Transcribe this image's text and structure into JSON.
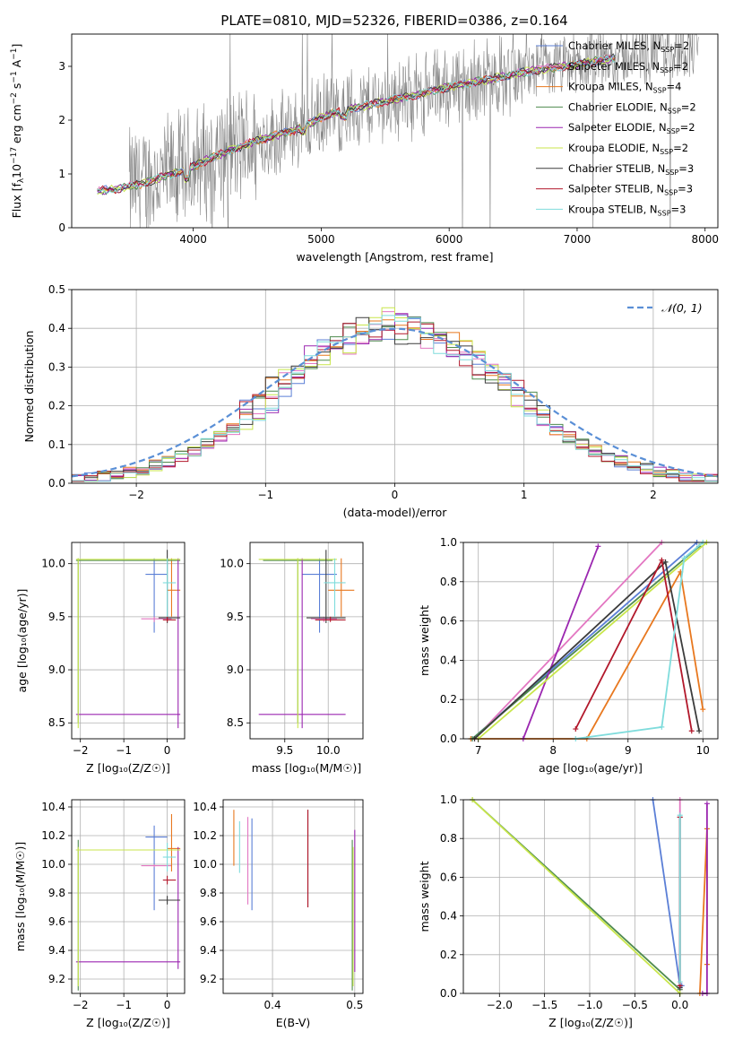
{
  "figure": {
    "title": "PLATE=0810, MJD=52326, FIBERID=0386, z=0.164"
  },
  "colors": {
    "Chabrier MILES": "#5b7fd6",
    "Salpeter MILES": "#e377c2",
    "Kroupa MILES": "#e8781f",
    "Chabrier ELODIE": "#4f8b4f",
    "Salpeter ELODIE": "#9b27b0",
    "Kroupa ELODIE": "#c8e64b",
    "Chabrier STELIB": "#3c3c3c",
    "Salpeter STELIB": "#b2182b",
    "Kroupa STELIB": "#7fdcdc",
    "data": "#808080",
    "gauss": "#5a8fd6"
  },
  "chart_data": [
    {
      "id": "spectrum",
      "type": "line",
      "title": "PLATE=0810, MJD=52326, FIBERID=0386, z=0.164",
      "xlabel": "wavelength [Angstrom, rest frame]",
      "ylabel": "Flux [f",
      "ylabel_sub": "λ",
      "ylabel_rest": "10",
      "ylabel_exp": "−17",
      "ylabel_tail": " erg cm",
      "ylabel_exp2": "−2",
      "ylabel_tail2": " s",
      "ylabel_exp3": "−1",
      "ylabel_tail3": " A",
      "ylabel_exp4": "−1",
      "ylabel_end": "]",
      "xlim": [
        3050,
        8100
      ],
      "ylim": [
        0,
        3.6
      ],
      "xticks": [
        4000,
        5000,
        6000,
        7000,
        8000
      ],
      "yticks": [
        0,
        1,
        2,
        3
      ],
      "legend_position": "top-right",
      "legend": [
        {
          "name": "Chabrier MILES",
          "nssp": "2"
        },
        {
          "name": "Salpeter MILES",
          "nssp": "2"
        },
        {
          "name": "Kroupa MILES",
          "nssp": "4"
        },
        {
          "name": "Chabrier ELODIE",
          "nssp": "2"
        },
        {
          "name": "Salpeter ELODIE",
          "nssp": "2"
        },
        {
          "name": "Kroupa ELODIE",
          "nssp": "2"
        },
        {
          "name": "Chabrier STELIB",
          "nssp": "3"
        },
        {
          "name": "Salpeter STELIB",
          "nssp": "3"
        },
        {
          "name": "Kroupa STELIB",
          "nssp": "3"
        }
      ],
      "legend_prefix": "N",
      "legend_sub": "SSP",
      "model_continuum": {
        "x": [
          3250,
          3400,
          3600,
          3800,
          3950,
          4100,
          4300,
          4500,
          4800,
          5000,
          5200,
          5500,
          5800,
          6000,
          6300,
          6600,
          6900,
          7200,
          7500,
          7800,
          8000
        ],
        "y": [
          0.68,
          0.72,
          0.82,
          0.98,
          1.08,
          1.25,
          1.45,
          1.62,
          1.82,
          2.05,
          2.2,
          2.35,
          2.5,
          2.62,
          2.75,
          2.9,
          3.0,
          3.12,
          3.22,
          3.32,
          3.4
        ]
      }
    },
    {
      "id": "residuals",
      "type": "line",
      "xlabel": "(data-model)/error",
      "ylabel": "Normed distribution",
      "xlim": [
        -2.5,
        2.5
      ],
      "ylim": [
        0,
        0.5
      ],
      "xticks": [
        -2,
        -1,
        0,
        1,
        2
      ],
      "yticks": [
        0.0,
        0.1,
        0.2,
        0.3,
        0.4,
        0.5
      ],
      "grid": true,
      "legend_position": "top-right",
      "gauss_label": "𝒩(0, 1)",
      "hist_bin_width": 0.1,
      "hist_x_start": -2.5
    },
    {
      "id": "age_vs_Z",
      "type": "scatter",
      "xlabel": "Z [log₁₀(Z/Z☉)]",
      "ylabel": "age  [log₁₀(age/yr)]",
      "xlim": [
        -2.2,
        0.4
      ],
      "ylim": [
        8.35,
        10.2
      ],
      "xticks": [
        -2,
        -1,
        0
      ],
      "yticks": [
        8.5,
        9.0,
        9.5,
        10.0
      ],
      "grid": true
    },
    {
      "id": "age_vs_mass",
      "type": "scatter",
      "xlabel": "mass [log₁₀(M/M☉)]",
      "xlim": [
        9.1,
        10.4
      ],
      "ylim": [
        8.35,
        10.2
      ],
      "xticks": [
        9.5,
        10.0
      ],
      "yticks": [
        8.5,
        9.0,
        9.5,
        10.0
      ],
      "grid": true
    },
    {
      "id": "weight_vs_age",
      "type": "line",
      "xlabel": "age  [log₁₀(age/yr)]",
      "ylabel": "mass weight",
      "xlim": [
        6.8,
        10.2
      ],
      "ylim": [
        0,
        1
      ],
      "xticks": [
        7,
        8,
        9,
        10
      ],
      "yticks": [
        0.0,
        0.2,
        0.4,
        0.6,
        0.8,
        1.0
      ],
      "grid": true,
      "series": [
        {
          "name": "Chabrier MILES",
          "x": [
            6.92,
            9.92
          ],
          "y": [
            0.0,
            1.0
          ]
        },
        {
          "name": "Salpeter MILES",
          "x": [
            6.95,
            9.45
          ],
          "y": [
            0.0,
            1.0
          ]
        },
        {
          "name": "Kroupa MILES",
          "x": [
            6.9,
            8.45,
            9.7,
            10.0
          ],
          "y": [
            0.0,
            0.0,
            0.85,
            0.15
          ]
        },
        {
          "name": "Chabrier ELODIE",
          "x": [
            6.92,
            9.95
          ],
          "y": [
            0.0,
            0.98
          ]
        },
        {
          "name": "Salpeter ELODIE",
          "x": [
            7.6,
            8.6
          ],
          "y": [
            0.0,
            0.98
          ]
        },
        {
          "name": "Kroupa ELODIE",
          "x": [
            7.0,
            10.05
          ],
          "y": [
            0.0,
            1.0
          ]
        },
        {
          "name": "Chabrier STELIB",
          "x": [
            6.95,
            9.5,
            9.95
          ],
          "y": [
            0.0,
            0.9,
            0.04
          ]
        },
        {
          "name": "Salpeter STELIB",
          "x": [
            8.3,
            9.45,
            9.85
          ],
          "y": [
            0.05,
            0.91,
            0.04
          ]
        },
        {
          "name": "Kroupa STELIB",
          "x": [
            8.3,
            9.45,
            9.75,
            10.0
          ],
          "y": [
            0.0,
            0.06,
            0.92,
            1.0
          ]
        }
      ]
    },
    {
      "id": "mass_vs_Z",
      "type": "scatter",
      "xlabel": "Z [log₁₀(Z/Z☉)]",
      "ylabel": "mass [log₁₀(M/M☉)]",
      "xlim": [
        -2.2,
        0.4
      ],
      "ylim": [
        9.1,
        10.45
      ],
      "xticks": [
        -2,
        -1,
        0
      ],
      "yticks": [
        9.2,
        9.4,
        9.6,
        9.8,
        10.0,
        10.2,
        10.4
      ],
      "grid": true
    },
    {
      "id": "mass_vs_EBV",
      "type": "scatter",
      "xlabel": "E(B-V)",
      "xlim": [
        0.34,
        0.51
      ],
      "ylim": [
        9.1,
        10.45
      ],
      "xticks": [
        0.4,
        0.5
      ],
      "yticks": [
        9.2,
        9.4,
        9.6,
        9.8,
        10.0,
        10.2,
        10.4
      ],
      "grid": true,
      "series": [
        {
          "name": "Chabrier MILES",
          "x": 0.375,
          "ylo": 9.68,
          "yhi": 10.32
        },
        {
          "name": "Salpeter MILES",
          "x": 0.37,
          "ylo": 9.72,
          "yhi": 10.33
        },
        {
          "name": "Kroupa MILES",
          "x": 0.353,
          "ylo": 9.99,
          "yhi": 10.38
        },
        {
          "name": "Chabrier ELODIE",
          "x": 0.497,
          "ylo": 9.12,
          "yhi": 10.17
        },
        {
          "name": "Salpeter ELODIE",
          "x": 0.5,
          "ylo": 9.25,
          "yhi": 10.24
        },
        {
          "name": "Kroupa ELODIE",
          "x": 0.498,
          "ylo": 9.15,
          "yhi": 10.12
        },
        {
          "name": "Chabrier STELIB",
          "x": 0.443,
          "ylo": 9.7,
          "yhi": 10.38
        },
        {
          "name": "Salpeter STELIB",
          "x": 0.443,
          "ylo": 9.7,
          "yhi": 10.38
        },
        {
          "name": "Kroupa STELIB",
          "x": 0.36,
          "ylo": 9.94,
          "yhi": 10.3
        }
      ]
    },
    {
      "id": "weight_vs_Z",
      "type": "line",
      "xlabel": "Z [log₁₀(Z/Z☉)]",
      "ylabel": "mass weight",
      "xlim": [
        -2.4,
        0.42
      ],
      "ylim": [
        0,
        1
      ],
      "xticks": [
        -2.0,
        -1.5,
        -1.0,
        -0.5,
        0.0
      ],
      "yticks": [
        0.0,
        0.2,
        0.4,
        0.6,
        0.8,
        1.0
      ],
      "grid": true,
      "series": [
        {
          "name": "Chabrier MILES",
          "x": [
            -0.3,
            0.0,
            0.02
          ],
          "y": [
            1.0,
            0.04,
            0.04
          ]
        },
        {
          "name": "Salpeter MILES",
          "x": [
            0.0,
            0.0
          ],
          "y": [
            0.02,
            1.0
          ]
        },
        {
          "name": "Kroupa MILES",
          "x": [
            0.3,
            0.3,
            0.22
          ],
          "y": [
            0.15,
            0.85,
            0.0
          ]
        },
        {
          "name": "Chabrier ELODIE",
          "x": [
            -2.3,
            0.0
          ],
          "y": [
            1.0,
            0.02
          ]
        },
        {
          "name": "Salpeter ELODIE",
          "x": [
            0.3,
            0.3,
            0.25
          ],
          "y": [
            0.98,
            0.0,
            0.0
          ]
        },
        {
          "name": "Kroupa ELODIE",
          "x": [
            -2.3,
            0.0
          ],
          "y": [
            1.0,
            0.0
          ]
        },
        {
          "name": "Chabrier STELIB",
          "x": [
            0.0,
            0.0
          ],
          "y": [
            0.03,
            0.91
          ]
        },
        {
          "name": "Salpeter STELIB",
          "x": [
            0.0,
            0.0
          ],
          "y": [
            0.04,
            0.91
          ]
        },
        {
          "name": "Kroupa STELIB",
          "x": [
            0.0,
            0.0
          ],
          "y": [
            0.06,
            0.92
          ]
        }
      ]
    }
  ],
  "sfh_points": [
    {
      "name": "Chabrier MILES",
      "Z": -0.3,
      "Zlo": -0.5,
      "Zhi": 0.0,
      "age": 9.9,
      "agelo": 9.35,
      "agehi": 10.05,
      "mass": 10.19,
      "masslo": 9.68,
      "masshi": 10.27,
      "m_lo": 9.7,
      "m_hi": 10.1
    },
    {
      "name": "Salpeter MILES",
      "Z": -0.3,
      "Zlo": -0.6,
      "Zhi": 0.1,
      "age": 9.48,
      "agelo": 9.45,
      "agehi": 9.5,
      "mass": 9.99,
      "masslo": 9.98,
      "masshi": 10.0,
      "m_lo": 9.8,
      "m_hi": 10.1
    },
    {
      "name": "Kroupa MILES",
      "Z": 0.1,
      "Zlo": 0.0,
      "Zhi": 0.3,
      "age": 9.75,
      "agelo": 9.5,
      "agehi": 10.05,
      "mass": 10.11,
      "masslo": 9.95,
      "masshi": 10.35,
      "m_lo": 10.0,
      "m_hi": 10.3
    },
    {
      "name": "Chabrier ELODIE",
      "Z": -2.05,
      "Zlo": -2.1,
      "Zhi": 0.3,
      "age": 10.03,
      "agelo": 8.5,
      "agehi": 10.05,
      "mass": 10.1,
      "masslo": 9.12,
      "masshi": 10.17,
      "m_lo": 9.25,
      "m_hi": 10.05
    },
    {
      "name": "Salpeter ELODIE",
      "Z": 0.25,
      "Zlo": -2.1,
      "Zhi": 0.3,
      "age": 8.58,
      "agelo": 8.45,
      "agehi": 10.05,
      "mass": 9.32,
      "masslo": 9.27,
      "masshi": 10.12,
      "m_lo": 9.2,
      "m_hi": 10.2
    },
    {
      "name": "Kroupa ELODIE",
      "Z": -2.05,
      "Zlo": -2.1,
      "Zhi": 0.3,
      "age": 10.04,
      "agelo": 8.45,
      "agehi": 10.05,
      "mass": 10.1,
      "masslo": 9.15,
      "masshi": 10.12,
      "m_lo": 9.2,
      "m_hi": 10.1
    },
    {
      "name": "Chabrier STELIB",
      "Z": 0.0,
      "Zlo": -0.2,
      "Zhi": 0.3,
      "age": 9.49,
      "agelo": 9.44,
      "agehi": 10.13,
      "mass": 9.75,
      "masslo": 9.72,
      "masshi": 9.78,
      "m_lo": 9.75,
      "m_hi": 10.2
    },
    {
      "name": "Salpeter STELIB",
      "Z": 0.0,
      "Zlo": -0.1,
      "Zhi": 0.2,
      "age": 9.47,
      "agelo": 9.45,
      "agehi": 9.5,
      "mass": 9.89,
      "masslo": 9.86,
      "masshi": 9.92,
      "m_lo": 9.85,
      "m_hi": 10.2
    },
    {
      "name": "Kroupa STELIB",
      "Z": 0.0,
      "Zlo": -0.1,
      "Zhi": 0.2,
      "age": 9.82,
      "agelo": 9.5,
      "agehi": 10.05,
      "mass": 10.05,
      "masslo": 9.95,
      "masshi": 10.15,
      "m_lo": 9.95,
      "m_hi": 10.2
    }
  ]
}
